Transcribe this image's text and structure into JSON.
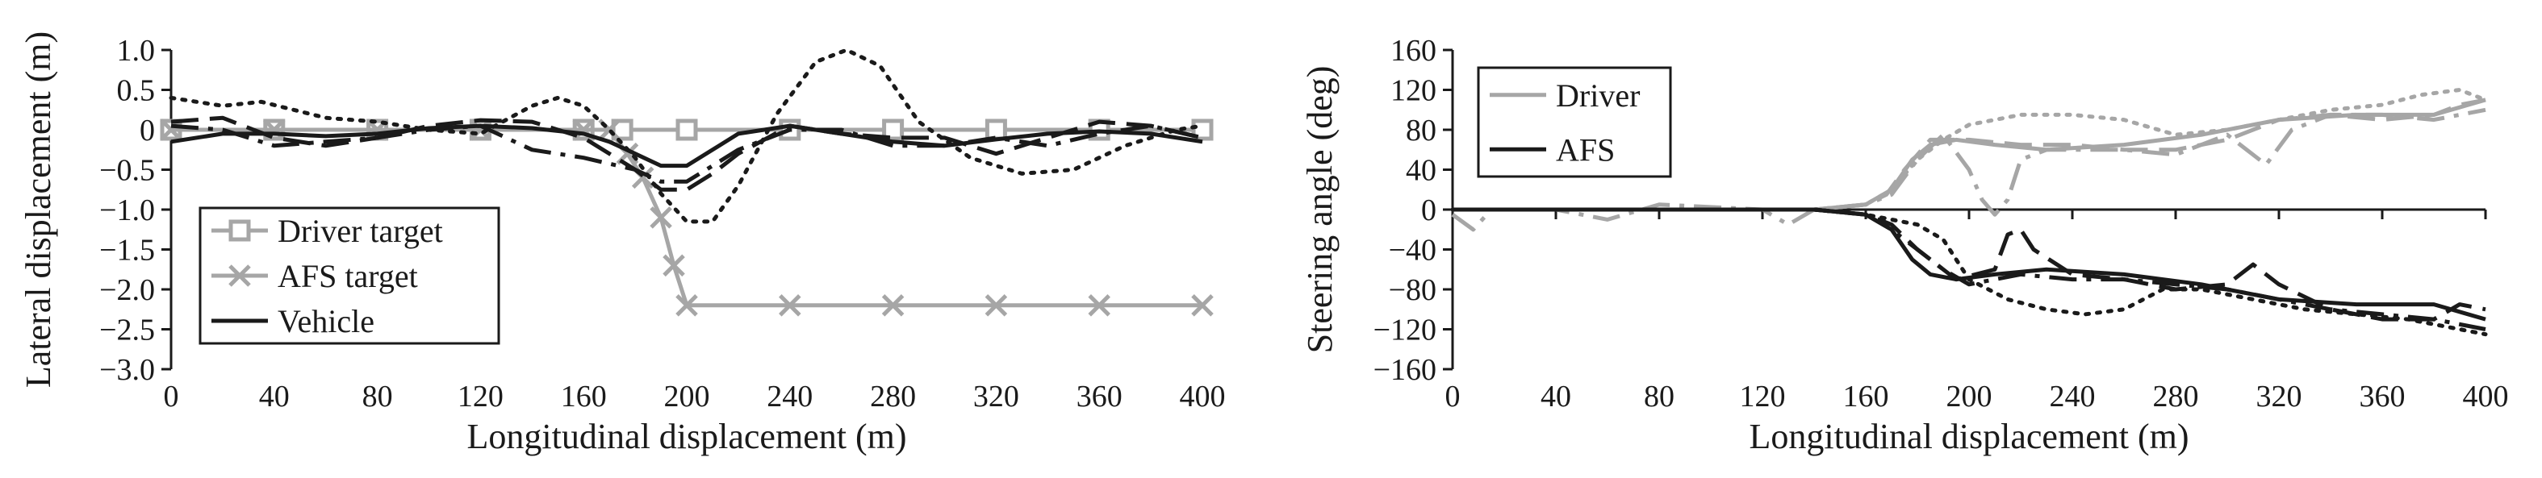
{
  "chart_data": [
    {
      "type": "line",
      "xlabel": "Longitudinal displacement (m)",
      "ylabel": "Lateral displacement (m)",
      "xlim": [
        0,
        400
      ],
      "ylim": [
        -3.0,
        1.0
      ],
      "xticks": [
        0,
        40,
        80,
        120,
        160,
        200,
        240,
        280,
        320,
        360,
        400
      ],
      "yticks": [
        1.0,
        0.5,
        0,
        -0.5,
        -1.0,
        -1.5,
        -2.0,
        -2.5,
        -3.0
      ],
      "ytick_labels": [
        "1.0",
        "0.5",
        "0",
        "−0.5",
        "−1.0",
        "−1.5",
        "−2.0",
        "−2.5",
        "−3.0"
      ],
      "grid": false,
      "legend_position": "bottom-left",
      "legend": [
        "Driver target",
        "AFS target",
        "Vehicle"
      ],
      "series": [
        {
          "name": "Driver target",
          "color": "#a6a6a6",
          "marker": "square",
          "x": [
            0,
            40,
            80,
            120,
            160,
            175,
            200,
            240,
            280,
            320,
            360,
            400
          ],
          "y": [
            0,
            0,
            0,
            0,
            0,
            0,
            0,
            0,
            0,
            0,
            0,
            0
          ],
          "marker_x": [
            0,
            40,
            80,
            120,
            160,
            175,
            200,
            240,
            280,
            320,
            360,
            400
          ]
        },
        {
          "name": "AFS target",
          "color": "#a6a6a6",
          "marker": "x",
          "x": [
            0,
            40,
            80,
            120,
            160,
            170,
            177,
            183,
            190,
            195,
            200,
            240,
            280,
            320,
            360,
            400
          ],
          "y": [
            0,
            0,
            0,
            0,
            0,
            0,
            -0.3,
            -0.6,
            -1.1,
            -1.7,
            -2.2,
            -2.2,
            -2.2,
            -2.2,
            -2.2,
            -2.2
          ],
          "marker_x": [
            0,
            40,
            80,
            120,
            160,
            170,
            177,
            183,
            190,
            195,
            200,
            240,
            280,
            320,
            360,
            400
          ]
        },
        {
          "name": "Vehicle",
          "color": "#1a1a1a",
          "style": "solid",
          "x": [
            0,
            20,
            40,
            60,
            80,
            100,
            120,
            140,
            160,
            170,
            180,
            190,
            200,
            210,
            220,
            240,
            260,
            280,
            300,
            320,
            340,
            360,
            380,
            400
          ],
          "y": [
            -0.15,
            -0.05,
            -0.05,
            -0.08,
            -0.05,
            0.02,
            0.05,
            0.02,
            -0.05,
            -0.15,
            -0.3,
            -0.45,
            -0.45,
            -0.25,
            -0.05,
            0.05,
            -0.05,
            -0.15,
            -0.2,
            -0.12,
            -0.05,
            -0.02,
            -0.05,
            -0.15
          ]
        },
        {
          "name": "",
          "color": "#1a1a1a",
          "style": "dashed",
          "x": [
            0,
            20,
            40,
            60,
            80,
            100,
            120,
            140,
            160,
            180,
            190,
            200,
            210,
            220,
            240,
            260,
            280,
            300,
            320,
            340,
            360,
            380,
            400
          ],
          "y": [
            0.1,
            0.15,
            -0.1,
            -0.2,
            -0.1,
            0.05,
            0.12,
            0.1,
            -0.1,
            -0.5,
            -0.75,
            -0.75,
            -0.55,
            -0.3,
            0.05,
            -0.05,
            -0.1,
            -0.1,
            -0.3,
            -0.1,
            0.1,
            0.05,
            -0.1
          ]
        },
        {
          "name": "",
          "color": "#1a1a1a",
          "style": "dashdot",
          "x": [
            0,
            20,
            40,
            60,
            80,
            100,
            120,
            140,
            160,
            180,
            190,
            200,
            210,
            220,
            240,
            260,
            280,
            300,
            320,
            340,
            360,
            380,
            400
          ],
          "y": [
            0.05,
            0.0,
            -0.2,
            -0.15,
            -0.1,
            0.0,
            0.05,
            -0.25,
            -0.35,
            -0.5,
            -0.65,
            -0.65,
            -0.45,
            -0.25,
            0.0,
            0.0,
            -0.2,
            -0.2,
            -0.1,
            -0.2,
            -0.05,
            0.05,
            -0.1
          ]
        },
        {
          "name": "",
          "color": "#1a1a1a",
          "style": "dotted",
          "x": [
            0,
            20,
            35,
            60,
            80,
            100,
            120,
            140,
            150,
            160,
            170,
            180,
            190,
            200,
            210,
            220,
            235,
            250,
            262,
            275,
            290,
            310,
            330,
            350,
            370,
            390,
            400
          ],
          "y": [
            0.4,
            0.3,
            0.35,
            0.15,
            0.1,
            0.0,
            -0.05,
            0.3,
            0.4,
            0.3,
            0.0,
            -0.35,
            -0.8,
            -1.15,
            -1.15,
            -0.7,
            0.2,
            0.85,
            1.0,
            0.8,
            0.1,
            -0.35,
            -0.55,
            -0.5,
            -0.2,
            0.0,
            0.05
          ]
        }
      ]
    },
    {
      "type": "line",
      "xlabel": "Longitudinal displacement (m)",
      "ylabel": "Steering angle (deg)",
      "xlim": [
        0,
        400
      ],
      "ylim": [
        -160,
        160
      ],
      "xticks": [
        0,
        40,
        80,
        120,
        160,
        200,
        240,
        280,
        320,
        360,
        400
      ],
      "yticks": [
        160,
        120,
        80,
        40,
        0,
        -40,
        -80,
        -120,
        -160
      ],
      "ytick_labels": [
        "160",
        "120",
        "80",
        "40",
        "0",
        "−40",
        "−80",
        "−120",
        "−160"
      ],
      "grid": false,
      "legend_position": "top-left",
      "legend": [
        "Driver",
        "AFS"
      ],
      "series": [
        {
          "name": "Driver",
          "color": "#a6a6a6",
          "style": "solid",
          "x": [
            0,
            80,
            140,
            160,
            170,
            178,
            185,
            195,
            210,
            230,
            260,
            290,
            320,
            350,
            380,
            400
          ],
          "y": [
            0,
            0,
            0,
            5,
            20,
            50,
            65,
            70,
            65,
            60,
            65,
            75,
            90,
            95,
            95,
            110
          ]
        },
        {
          "name": "",
          "color": "#a6a6a6",
          "style": "dashed",
          "x": [
            0,
            80,
            140,
            160,
            168,
            175,
            185,
            200,
            220,
            240,
            260,
            280,
            300,
            320,
            340,
            360,
            380,
            390,
            400
          ],
          "y": [
            0,
            0,
            0,
            5,
            15,
            40,
            70,
            70,
            65,
            65,
            60,
            60,
            70,
            90,
            95,
            90,
            95,
            105,
            110
          ]
        },
        {
          "name": "",
          "color": "#a6a6a6",
          "style": "dashdot",
          "x": [
            0,
            8,
            15,
            40,
            60,
            80,
            120,
            130,
            140,
            160,
            170,
            180,
            190,
            200,
            205,
            210,
            215,
            220,
            230,
            260,
            280,
            300,
            315,
            325,
            340,
            360,
            380,
            400
          ],
          "y": [
            -5,
            -20,
            0,
            0,
            -10,
            5,
            0,
            -15,
            0,
            5,
            15,
            50,
            75,
            40,
            10,
            -5,
            10,
            50,
            60,
            60,
            55,
            75,
            45,
            80,
            95,
            95,
            90,
            100
          ]
        },
        {
          "name": "",
          "color": "#a6a6a6",
          "style": "dotted",
          "x": [
            0,
            80,
            140,
            160,
            170,
            180,
            190,
            200,
            210,
            220,
            240,
            260,
            280,
            300,
            320,
            340,
            360,
            375,
            390,
            400
          ],
          "y": [
            0,
            0,
            0,
            5,
            20,
            50,
            70,
            85,
            90,
            95,
            95,
            90,
            75,
            80,
            90,
            100,
            105,
            115,
            120,
            110
          ]
        },
        {
          "name": "AFS",
          "color": "#1a1a1a",
          "style": "solid",
          "x": [
            0,
            80,
            140,
            160,
            170,
            178,
            185,
            195,
            210,
            230,
            260,
            290,
            320,
            350,
            380,
            400
          ],
          "y": [
            0,
            0,
            0,
            -5,
            -20,
            -50,
            -65,
            -70,
            -65,
            -60,
            -65,
            -75,
            -90,
            -95,
            -95,
            -110
          ]
        },
        {
          "name": "",
          "color": "#1a1a1a",
          "style": "dashed",
          "x": [
            0,
            80,
            140,
            160,
            170,
            180,
            195,
            210,
            215,
            220,
            225,
            240,
            260,
            280,
            300,
            310,
            320,
            340,
            360,
            380,
            390,
            400
          ],
          "y": [
            0,
            0,
            0,
            -5,
            -15,
            -40,
            -70,
            -60,
            -25,
            -20,
            -40,
            -65,
            -70,
            -80,
            -75,
            -55,
            -75,
            -100,
            -110,
            -110,
            -95,
            -100
          ]
        },
        {
          "name": "",
          "color": "#1a1a1a",
          "style": "dashdot",
          "x": [
            0,
            80,
            140,
            160,
            170,
            180,
            190,
            200,
            220,
            240,
            260,
            280,
            300,
            320,
            340,
            360,
            380,
            400
          ],
          "y": [
            0,
            0,
            0,
            -5,
            -20,
            -40,
            -60,
            -75,
            -65,
            -70,
            -70,
            -75,
            -80,
            -90,
            -100,
            -105,
            -110,
            -120
          ]
        },
        {
          "name": "",
          "color": "#1a1a1a",
          "style": "dotted",
          "x": [
            0,
            80,
            140,
            160,
            170,
            180,
            190,
            200,
            215,
            230,
            245,
            260,
            275,
            290,
            310,
            330,
            350,
            370,
            390,
            400
          ],
          "y": [
            0,
            0,
            0,
            -5,
            -10,
            -15,
            -30,
            -70,
            -90,
            -100,
            -105,
            -100,
            -80,
            -80,
            -90,
            -100,
            -105,
            -110,
            -120,
            -125
          ]
        }
      ]
    }
  ]
}
